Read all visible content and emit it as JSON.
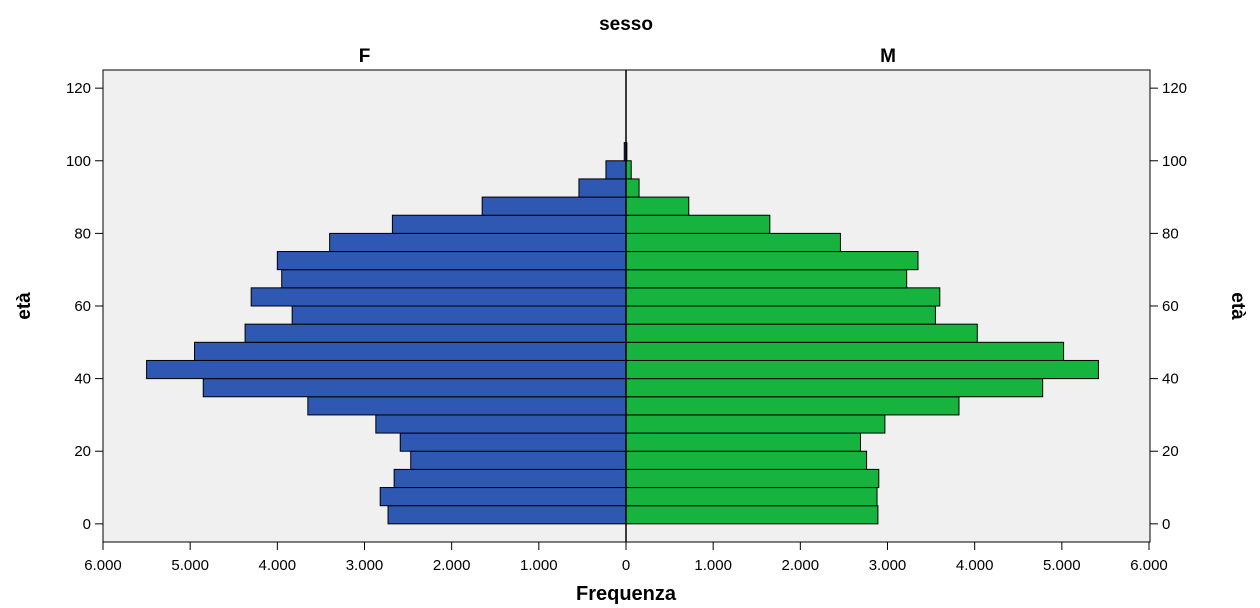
{
  "chart_data": {
    "type": "bar",
    "orientation": "horizontal",
    "layout": "population-pyramid",
    "panel_variable": "sesso",
    "xlabel": "Frequenza",
    "ylabel": "età",
    "xlim": [
      0,
      6000
    ],
    "ylim": [
      -5,
      125
    ],
    "x_ticks": [
      0,
      1000,
      2000,
      3000,
      4000,
      5000,
      6000
    ],
    "x_tick_labels": [
      "0",
      "1.000",
      "2.000",
      "3.000",
      "4.000",
      "5.000",
      "6.000"
    ],
    "y_ticks": [
      0,
      20,
      40,
      60,
      80,
      100,
      120
    ],
    "y_tick_labels": [
      "0",
      "20",
      "40",
      "60",
      "80",
      "100",
      "120"
    ],
    "bin_width": 5,
    "age_bins": [
      0,
      5,
      10,
      15,
      20,
      25,
      30,
      35,
      40,
      45,
      50,
      55,
      60,
      65,
      70,
      75,
      80,
      85,
      90,
      95,
      100
    ],
    "series": [
      {
        "name": "F",
        "color": "#2f58b3",
        "values": [
          2730,
          2820,
          2660,
          2470,
          2590,
          2870,
          3650,
          4850,
          5500,
          4950,
          4370,
          3830,
          4300,
          3950,
          4000,
          3400,
          2680,
          1650,
          540,
          230,
          20
        ]
      },
      {
        "name": "M",
        "color": "#16b33e",
        "values": [
          2890,
          2880,
          2900,
          2760,
          2690,
          2970,
          3820,
          4780,
          5420,
          5020,
          4030,
          3550,
          3600,
          3220,
          3350,
          2460,
          1650,
          720,
          150,
          60,
          10
        ]
      }
    ],
    "grid": false,
    "legend": "none",
    "background_color": "#f0f0f0"
  }
}
